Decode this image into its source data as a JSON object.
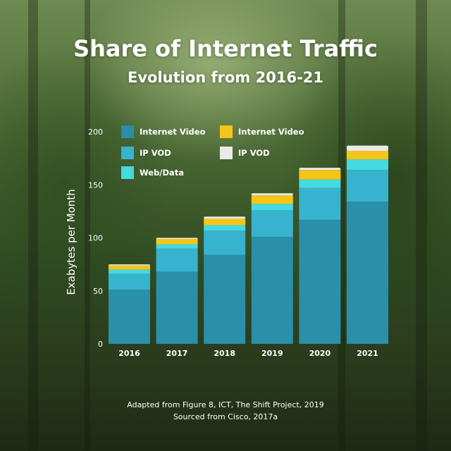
{
  "title": "Share of Internet Traffic",
  "subtitle": "Evolution from 2016-21",
  "footer": {
    "line1": "Adapted from Figure 8, ICT, The Shift Project, 2019",
    "line2": "Sourced from Cisco, 2017a"
  },
  "chart_data": {
    "type": "bar",
    "stacked": true,
    "categories": [
      "2016",
      "2017",
      "2018",
      "2019",
      "2020",
      "2021"
    ],
    "ylabel": "Exabytes per Month",
    "ylim": [
      0,
      200
    ],
    "yticks": [
      0,
      50,
      100,
      150,
      200
    ],
    "grid": false,
    "legend_position": "top-left",
    "series": [
      {
        "name": "Internet Video",
        "color": "#2a8fa8",
        "values": [
          51,
          68,
          84,
          101,
          117,
          134
        ]
      },
      {
        "name": "IP VOD",
        "color": "#37b3cf",
        "values": [
          15,
          22,
          23,
          25,
          30,
          30
        ]
      },
      {
        "name": "Web/Data",
        "color": "#45d9e0",
        "values": [
          4,
          4,
          5,
          6,
          8,
          10
        ]
      },
      {
        "name": "Internet Video",
        "color": "#f5c518",
        "values": [
          4,
          5,
          6,
          8,
          9,
          8
        ]
      },
      {
        "name": "IP VOD",
        "color": "#eaeaea",
        "values": [
          1,
          1,
          2,
          2,
          2,
          5
        ]
      }
    ]
  }
}
